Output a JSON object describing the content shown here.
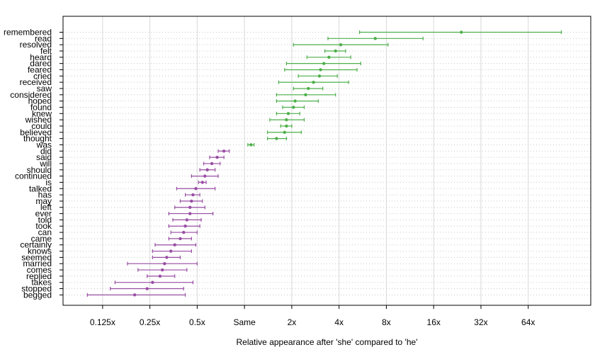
{
  "chart_data": {
    "type": "scatter",
    "xlabel": "Relative appearance after 'she' compared to 'he'",
    "x_scale": "log2",
    "x_ticks": [
      {
        "value": 0.125,
        "label": "0.125x"
      },
      {
        "value": 0.25,
        "label": "0.25x"
      },
      {
        "value": 0.5,
        "label": "0.5x"
      },
      {
        "value": 1,
        "label": "Same"
      },
      {
        "value": 2,
        "label": "2x"
      },
      {
        "value": 4,
        "label": "4x"
      },
      {
        "value": 8,
        "label": "8x"
      },
      {
        "value": 16,
        "label": "16x"
      },
      {
        "value": 32,
        "label": "32x"
      },
      {
        "value": 64,
        "label": "64x"
      }
    ],
    "xlim": [
      0.07,
      160
    ],
    "grid": true,
    "colors": {
      "she": "#4daf4a",
      "he": "#984ea3",
      "grid_vertical": "#d9d9d9",
      "grid_horizontal": "#c8c8c8"
    },
    "series": [
      {
        "word": "remembered",
        "estimate": 24.0,
        "lower": 5.4,
        "upper": 104.0,
        "group": "she"
      },
      {
        "word": "read",
        "estimate": 6.8,
        "lower": 3.4,
        "upper": 13.7,
        "group": "she"
      },
      {
        "word": "resolved",
        "estimate": 4.1,
        "lower": 2.05,
        "upper": 8.2,
        "group": "she"
      },
      {
        "word": "felt",
        "estimate": 3.8,
        "lower": 3.25,
        "upper": 4.4,
        "group": "she"
      },
      {
        "word": "heard",
        "estimate": 3.45,
        "lower": 2.5,
        "upper": 4.75,
        "group": "she"
      },
      {
        "word": "dared",
        "estimate": 3.2,
        "lower": 1.85,
        "upper": 5.5,
        "group": "she"
      },
      {
        "word": "feared",
        "estimate": 3.05,
        "lower": 1.8,
        "upper": 5.2,
        "group": "she"
      },
      {
        "word": "cried",
        "estimate": 3.0,
        "lower": 2.2,
        "upper": 3.9,
        "group": "she"
      },
      {
        "word": "received",
        "estimate": 2.75,
        "lower": 1.65,
        "upper": 4.6,
        "group": "she"
      },
      {
        "word": "saw",
        "estimate": 2.55,
        "lower": 2.05,
        "upper": 3.15,
        "group": "she"
      },
      {
        "word": "considered",
        "estimate": 2.45,
        "lower": 1.6,
        "upper": 3.8,
        "group": "she"
      },
      {
        "word": "hoped",
        "estimate": 2.1,
        "lower": 1.6,
        "upper": 2.95,
        "group": "she"
      },
      {
        "word": "found",
        "estimate": 2.05,
        "lower": 1.75,
        "upper": 2.4,
        "group": "she"
      },
      {
        "word": "knew",
        "estimate": 1.9,
        "lower": 1.6,
        "upper": 2.25,
        "group": "she"
      },
      {
        "word": "wished",
        "estimate": 1.85,
        "lower": 1.45,
        "upper": 2.4,
        "group": "she"
      },
      {
        "word": "could",
        "estimate": 1.85,
        "lower": 1.7,
        "upper": 2.0,
        "group": "she"
      },
      {
        "word": "believed",
        "estimate": 1.8,
        "lower": 1.4,
        "upper": 2.3,
        "group": "she"
      },
      {
        "word": "thought",
        "estimate": 1.6,
        "lower": 1.4,
        "upper": 1.85,
        "group": "she"
      },
      {
        "word": "was",
        "estimate": 1.1,
        "lower": 1.05,
        "upper": 1.15,
        "group": "she"
      },
      {
        "word": "did",
        "estimate": 0.74,
        "lower": 0.68,
        "upper": 0.8,
        "group": "he"
      },
      {
        "word": "said",
        "estimate": 0.67,
        "lower": 0.6,
        "upper": 0.74,
        "group": "he"
      },
      {
        "word": "will",
        "estimate": 0.62,
        "lower": 0.55,
        "upper": 0.7,
        "group": "he"
      },
      {
        "word": "should",
        "estimate": 0.58,
        "lower": 0.52,
        "upper": 0.65,
        "group": "he"
      },
      {
        "word": "continued",
        "estimate": 0.56,
        "lower": 0.46,
        "upper": 0.68,
        "group": "he"
      },
      {
        "word": "is",
        "estimate": 0.54,
        "lower": 0.51,
        "upper": 0.57,
        "group": "he"
      },
      {
        "word": "talked",
        "estimate": 0.49,
        "lower": 0.37,
        "upper": 0.65,
        "group": "he"
      },
      {
        "word": "has",
        "estimate": 0.47,
        "lower": 0.42,
        "upper": 0.52,
        "group": "he"
      },
      {
        "word": "may",
        "estimate": 0.46,
        "lower": 0.39,
        "upper": 0.54,
        "group": "he"
      },
      {
        "word": "left",
        "estimate": 0.45,
        "lower": 0.36,
        "upper": 0.56,
        "group": "he"
      },
      {
        "word": "ever",
        "estimate": 0.45,
        "lower": 0.33,
        "upper": 0.63,
        "group": "he"
      },
      {
        "word": "told",
        "estimate": 0.43,
        "lower": 0.35,
        "upper": 0.53,
        "group": "he"
      },
      {
        "word": "took",
        "estimate": 0.42,
        "lower": 0.33,
        "upper": 0.52,
        "group": "he"
      },
      {
        "word": "can",
        "estimate": 0.41,
        "lower": 0.34,
        "upper": 0.5,
        "group": "he"
      },
      {
        "word": "came",
        "estimate": 0.39,
        "lower": 0.33,
        "upper": 0.46,
        "group": "he"
      },
      {
        "word": "certainly",
        "estimate": 0.36,
        "lower": 0.27,
        "upper": 0.49,
        "group": "he"
      },
      {
        "word": "knows",
        "estimate": 0.34,
        "lower": 0.26,
        "upper": 0.46,
        "group": "he"
      },
      {
        "word": "seemed",
        "estimate": 0.32,
        "lower": 0.26,
        "upper": 0.39,
        "group": "he"
      },
      {
        "word": "married",
        "estimate": 0.31,
        "lower": 0.18,
        "upper": 0.5,
        "group": "he"
      },
      {
        "word": "comes",
        "estimate": 0.3,
        "lower": 0.21,
        "upper": 0.43,
        "group": "he"
      },
      {
        "word": "replied",
        "estimate": 0.29,
        "lower": 0.24,
        "upper": 0.36,
        "group": "he"
      },
      {
        "word": "takes",
        "estimate": 0.26,
        "lower": 0.15,
        "upper": 0.47,
        "group": "he"
      },
      {
        "word": "stopped",
        "estimate": 0.24,
        "lower": 0.14,
        "upper": 0.41,
        "group": "he"
      },
      {
        "word": "begged",
        "estimate": 0.2,
        "lower": 0.1,
        "upper": 0.42,
        "group": "he"
      }
    ]
  }
}
